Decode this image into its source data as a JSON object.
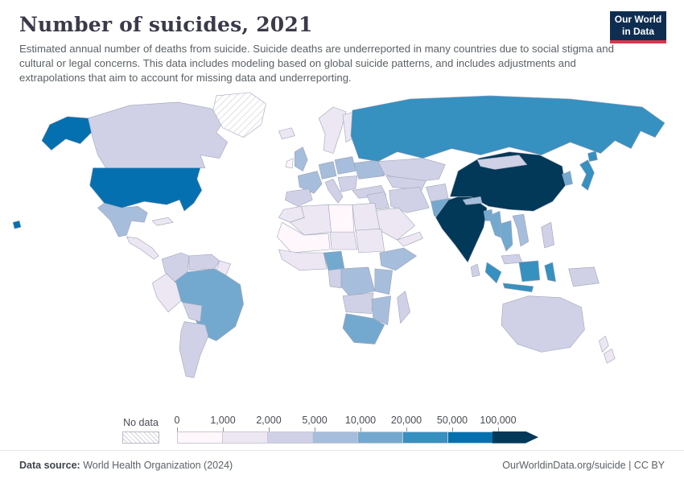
{
  "header": {
    "title": "Number of suicides, 2021",
    "subtitle": "Estimated annual number of deaths from suicide. Suicide deaths are underreported in many countries due to social stigma and cultural or legal concerns. This data includes modeling based on global suicide patterns, and includes adjustments and extrapolations that aim to account for missing data and underreporting.",
    "logo_line1": "Our World",
    "logo_line2": "in Data"
  },
  "legend": {
    "no_data_label": "No data",
    "ticks": [
      "0",
      "1,000",
      "2,000",
      "5,000",
      "10,000",
      "20,000",
      "50,000",
      "100,000"
    ]
  },
  "footer": {
    "source_label": "Data source:",
    "source_text": " World Health Organization (2024)",
    "right_text": "OurWorldinData.org/suicide | CC BY"
  },
  "chart_data": {
    "type": "heatmap",
    "subtype": "world-choropleth",
    "title": "Number of suicides, 2021",
    "unit": "suicide deaths per year",
    "legend_position": "bottom-left",
    "no_data": {
      "label": "No data",
      "pattern": "diagonal-hatch"
    },
    "bins": [
      {
        "label": "0–1,000",
        "color": "#fff7fb"
      },
      {
        "label": "1,000–2,000",
        "color": "#ece7f2"
      },
      {
        "label": "2,000–5,000",
        "color": "#d0d1e6"
      },
      {
        "label": "5,000–10,000",
        "color": "#a6bddb"
      },
      {
        "label": "10,000–20,000",
        "color": "#74a9cf"
      },
      {
        "label": "20,000–50,000",
        "color": "#3690c0"
      },
      {
        "label": "50,000–100,000",
        "color": "#0570b0"
      },
      {
        "label": "100,000+",
        "color": "#023858"
      }
    ],
    "regions": [
      {
        "name": "China",
        "bin": "100,000+"
      },
      {
        "name": "India",
        "bin": "100,000+"
      },
      {
        "name": "United States",
        "bin": "50,000–100,000"
      },
      {
        "name": "Russia",
        "bin": "20,000–50,000"
      },
      {
        "name": "Japan",
        "bin": "20,000–50,000"
      },
      {
        "name": "Indonesia",
        "bin": "20,000–50,000"
      },
      {
        "name": "Brazil",
        "bin": "10,000–20,000"
      },
      {
        "name": "Pakistan",
        "bin": "10,000–20,000"
      },
      {
        "name": "Nigeria",
        "bin": "10,000–20,000"
      },
      {
        "name": "South Africa",
        "bin": "10,000–20,000"
      },
      {
        "name": "South Korea",
        "bin": "10,000–20,000"
      },
      {
        "name": "Myanmar",
        "bin": "10,000–20,000"
      },
      {
        "name": "Thailand",
        "bin": "10,000–20,000"
      },
      {
        "name": "Bangladesh",
        "bin": "10,000–20,000"
      },
      {
        "name": "Mexico",
        "bin": "5,000–10,000"
      },
      {
        "name": "France",
        "bin": "5,000–10,000"
      },
      {
        "name": "Germany",
        "bin": "5,000–10,000"
      },
      {
        "name": "United Kingdom",
        "bin": "5,000–10,000"
      },
      {
        "name": "Ukraine",
        "bin": "5,000–10,000"
      },
      {
        "name": "Poland",
        "bin": "5,000–10,000"
      },
      {
        "name": "Ethiopia",
        "bin": "5,000–10,000"
      },
      {
        "name": "Democratic Republic of Congo",
        "bin": "5,000–10,000"
      },
      {
        "name": "Vietnam",
        "bin": "5,000–10,000"
      },
      {
        "name": "Canada",
        "bin": "2,000–5,000"
      },
      {
        "name": "Australia",
        "bin": "2,000–5,000"
      },
      {
        "name": "Argentina",
        "bin": "2,000–5,000"
      },
      {
        "name": "Spain",
        "bin": "2,000–5,000"
      },
      {
        "name": "Italy",
        "bin": "2,000–5,000"
      },
      {
        "name": "Turkey",
        "bin": "2,000–5,000"
      },
      {
        "name": "Iran",
        "bin": "2,000–5,000"
      },
      {
        "name": "Kazakhstan",
        "bin": "2,000–5,000"
      },
      {
        "name": "Greenland",
        "bin": "No data"
      }
    ]
  },
  "map": {
    "border_color": "#9fa5b8",
    "region_colors": {
      "alaska": "#0570b0",
      "canada": "#d0d1e6",
      "usa": "#0570b0",
      "hawaii": "#0570b0",
      "mexico": "#a6bddb",
      "central_america": "#ece7f2",
      "cuba": "#ece7f2",
      "colombia": "#d0d1e6",
      "venezuela": "#d0d1e6",
      "guyanas": "#ece7f2",
      "peru": "#ece7f2",
      "brazil": "#74a9cf",
      "bolivia": "#d0d1e6",
      "argentina": "#d0d1e6",
      "iceland": "#ece7f2",
      "uk": "#a6bddb",
      "ireland": "#fff7fb",
      "scandinavia": "#ece7f2",
      "finland": "#ece7f2",
      "france": "#a6bddb",
      "spain": "#d0d1e6",
      "germany": "#a6bddb",
      "italy": "#d0d1e6",
      "poland": "#a6bddb",
      "ukraine": "#a6bddb",
      "balkans": "#d0d1e6",
      "turkey": "#d0d1e6",
      "russia": "#3690c0",
      "kazakhstan": "#d0d1e6",
      "central_asia": "#d0d1e6",
      "syria_iraq": "#d0d1e6",
      "iran": "#d0d1e6",
      "saudi_arabia": "#ece7f2",
      "yemen_oman": "#ece7f2",
      "morocco": "#ece7f2",
      "algeria": "#ece7f2",
      "libya": "#fff7fb",
      "egypt": "#ece7f2",
      "mali_mauritania": "#fff7fb",
      "niger_chad": "#ece7f2",
      "sudan": "#ece7f2",
      "west_africa": "#ece7f2",
      "nigeria": "#74a9cf",
      "ethiopia": "#a6bddb",
      "cameroon_gabon": "#d0d1e6",
      "drc": "#a6bddb",
      "kenya_tanzania": "#a6bddb",
      "angola_zambia": "#d0d1e6",
      "mozambique_zimbabwe": "#a6bddb",
      "south_africa": "#74a9cf",
      "madagascar": "#d0d1e6",
      "afghanistan": "#d0d1e6",
      "pakistan": "#74a9cf",
      "india": "#023858",
      "nepal": "#a6bddb",
      "bangladesh": "#74a9cf",
      "china": "#023858",
      "mongolia": "#d0d1e6",
      "korea": "#74a9cf",
      "japan": "#3690c0",
      "myanmar": "#74a9cf",
      "thailand": "#74a9cf",
      "vietnam": "#a6bddb",
      "malaysia": "#d0d1e6",
      "philippines": "#d0d1e6",
      "sri_lanka": "#d0d1e6",
      "indonesia": "#3690c0",
      "new_guinea": "#d0d1e6",
      "australia": "#d0d1e6",
      "new_zealand": "#ece7f2"
    }
  }
}
